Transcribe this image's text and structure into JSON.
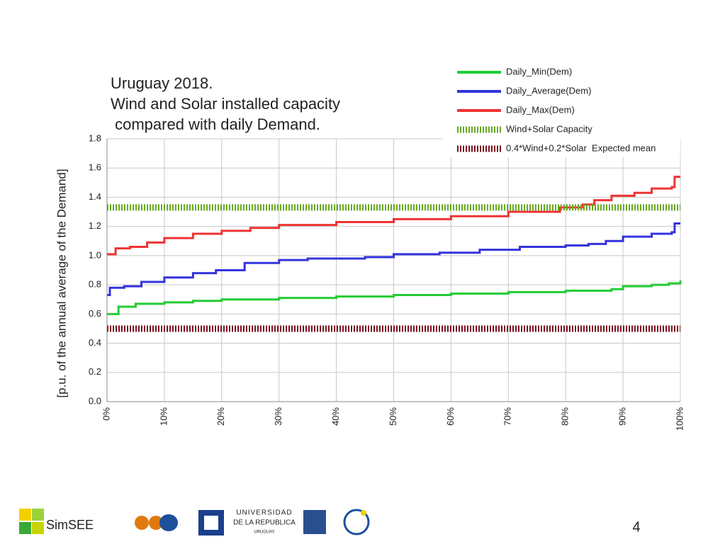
{
  "chart_data": {
    "type": "line",
    "title": [
      "Uruguay 2018.",
      "Wind and Solar installed capacity",
      " compared with daily Demand."
    ],
    "y_label": "[p.u. of the annual average of the Demand]",
    "xlim": [
      0,
      100
    ],
    "xticks": [
      {
        "value": 0,
        "label": "0%"
      },
      {
        "value": 10,
        "label": "10%"
      },
      {
        "value": 20,
        "label": "20%"
      },
      {
        "value": 30,
        "label": "30%"
      },
      {
        "value": 40,
        "label": "40%"
      },
      {
        "value": 50,
        "label": "50%"
      },
      {
        "value": 60,
        "label": "60%"
      },
      {
        "value": 70,
        "label": "70%"
      },
      {
        "value": 80,
        "label": "80%"
      },
      {
        "value": 90,
        "label": "90%"
      },
      {
        "value": 100,
        "label": "100%"
      }
    ],
    "ylim": [
      0,
      1.8
    ],
    "yticks": [
      {
        "value": 0,
        "label": "0.0"
      },
      0.2,
      0.4,
      0.6,
      0.8,
      {
        "value": 1,
        "label": "1.0"
      },
      1.2,
      1.4,
      1.6,
      1.8
    ],
    "grid": true,
    "legend": "top-right",
    "series": [
      {
        "name": "Daily_Min(Dem)",
        "color": "#22cc33",
        "style": "solid",
        "x": [
          0,
          2,
          5,
          10,
          15,
          20,
          30,
          40,
          50,
          60,
          70,
          80,
          88,
          90,
          95,
          98,
          100
        ],
        "values": [
          0.6,
          0.65,
          0.67,
          0.68,
          0.69,
          0.7,
          0.71,
          0.72,
          0.73,
          0.74,
          0.75,
          0.76,
          0.77,
          0.79,
          0.8,
          0.81,
          0.83
        ]
      },
      {
        "name": "Daily_Average(Dem)",
        "color": "#3333dd",
        "style": "solid",
        "x": [
          0,
          0.5,
          3,
          6,
          10,
          15,
          19,
          24,
          30,
          35,
          45,
          50,
          58,
          65,
          72,
          80,
          84,
          87,
          90,
          95,
          98.5,
          99,
          100
        ],
        "values": [
          0.73,
          0.78,
          0.79,
          0.82,
          0.85,
          0.88,
          0.9,
          0.95,
          0.97,
          0.98,
          0.99,
          1.01,
          1.02,
          1.04,
          1.06,
          1.07,
          1.08,
          1.1,
          1.13,
          1.15,
          1.16,
          1.22,
          1.22
        ]
      },
      {
        "name": "Daily_Max(Dem)",
        "color": "#ee3333",
        "style": "solid",
        "x": [
          0,
          1.5,
          4,
          7,
          10,
          15,
          20,
          25,
          30,
          40,
          50,
          60,
          70,
          79,
          83,
          85,
          88,
          92,
          95,
          98.5,
          99,
          100
        ],
        "values": [
          1.01,
          1.05,
          1.06,
          1.09,
          1.12,
          1.15,
          1.17,
          1.19,
          1.21,
          1.23,
          1.25,
          1.27,
          1.3,
          1.33,
          1.35,
          1.38,
          1.41,
          1.43,
          1.46,
          1.47,
          1.54,
          1.54
        ]
      },
      {
        "name": "Wind+Solar Capacity",
        "color": "#66aa22",
        "style": "dotted",
        "x": [
          0,
          100
        ],
        "values": [
          1.33,
          1.33
        ]
      },
      {
        "name": "0.4*Wind+0.2*Solar  Expected mean",
        "color": "#7a1020",
        "style": "dotted",
        "x": [
          0,
          100
        ],
        "values": [
          0.5,
          0.5
        ]
      }
    ]
  },
  "footer": {
    "logo_text": "SimSEE",
    "university": [
      "UNIVERSIDAD",
      "DE LA REPUBLICA",
      "URUGUAY"
    ],
    "page_number": "4"
  }
}
